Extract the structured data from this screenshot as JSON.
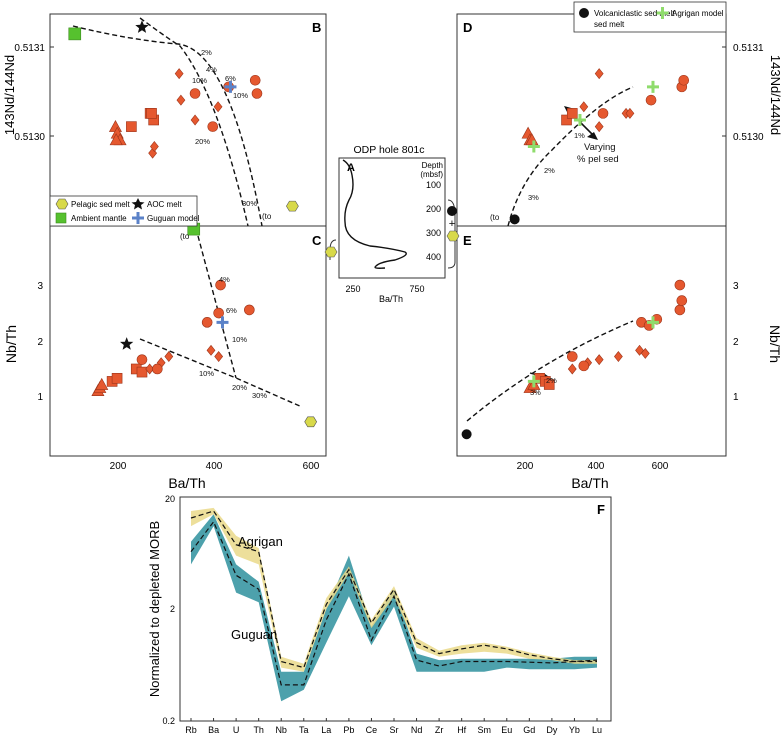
{
  "colors": {
    "data_red": "#e5582f",
    "data_red_edge": "#9b3319",
    "ambient_green": "#56c12e",
    "pel_yellow": "#d8d94a",
    "model_blue": "#5b82c8",
    "agrigan_green": "#8fdc6c",
    "agrigan_band": "#ead98a",
    "guguan_band": "#4da1ac"
  },
  "panels": {
    "B": {
      "letter": "B"
    },
    "C": {
      "letter": "C"
    },
    "D": {
      "letter": "D"
    },
    "E": {
      "letter": "E"
    },
    "F": {
      "letter": "F"
    }
  },
  "axes": {
    "nd_ticks": [
      "0.5131",
      "0.5130"
    ],
    "nbth_ticks": [
      "1",
      "2",
      "3"
    ],
    "bath_ticks": [
      "200",
      "400",
      "600"
    ],
    "nd_label_left": "143Nd/144Nd",
    "nd_label_right": "143Nd/144Nd",
    "nbth_label": "Nb/Th",
    "bath_label": "Ba/Th"
  },
  "legend_B": {
    "pelagic": "Pelagic sed melt",
    "aoc": "AOC melt",
    "ambient": "Ambient mantle",
    "guguan": "Guguan model"
  },
  "legend_D": {
    "volc": "Volcaniclastic sed melt",
    "volc2": "sed melt",
    "agrigan": "Agrigan model"
  },
  "annotations": {
    "pct_B": [
      "2%",
      "4%",
      "6%",
      "10%",
      "10%",
      "20%",
      "30%"
    ],
    "to_label": "(to",
    "pct_C": [
      "4%",
      "6%",
      "10%",
      "10%",
      "20%",
      "30%"
    ],
    "pct_D": [
      "1%",
      "2%",
      "3%"
    ],
    "varying_line1": "Varying",
    "varying_line2": "% pel sed",
    "pct_E": [
      "2%",
      "3%"
    ]
  },
  "inset_A": {
    "title": "ODP hole 801c",
    "letter": "A",
    "depth_label": "Depth",
    "depth_unit": "(mbsf)",
    "depth_ticks": [
      "100",
      "200",
      "300",
      "400"
    ],
    "x_ticks": [
      "250",
      "750"
    ],
    "xlabel": "Ba/Th"
  },
  "chart_data": [
    {
      "panel": "B",
      "type": "scatter",
      "xlabel": "Ba/Th",
      "ylabel": "143Nd/144Nd",
      "xlim": [
        0,
        780
      ],
      "ylim": [
        0.51285,
        0.51317
      ],
      "series": [
        {
          "name": "Guguan samples (triangles)",
          "points": [
            [
              185,
              0.513
            ],
            [
              190,
              0.51299
            ],
            [
              198,
              0.51298
            ],
            [
              187,
              0.51298
            ]
          ]
        },
        {
          "name": "Guguan samples (squares)",
          "points": [
            [
              230,
              0.513
            ],
            [
              283,
              0.51302
            ],
            [
              293,
              0.51301
            ],
            [
              287,
              0.51302
            ]
          ]
        },
        {
          "name": "Guguan samples (diamonds)",
          "points": [
            [
              365,
              0.51308
            ],
            [
              370,
              0.51304
            ],
            [
              410,
              0.51301
            ],
            [
              475,
              0.51303
            ],
            [
              290,
              0.51296
            ],
            [
              295,
              0.51297
            ]
          ]
        },
        {
          "name": "Guguan samples (circles)",
          "points": [
            [
              410,
              0.51305
            ],
            [
              460,
              0.513
            ],
            [
              505,
              0.51306
            ],
            [
              580,
              0.51307
            ],
            [
              585,
              0.51305
            ]
          ]
        },
        {
          "name": "Guguan model",
          "points": [
            [
              510,
              0.51306
            ]
          ]
        },
        {
          "name": "Ambient mantle",
          "points": [
            [
              70,
              0.51314
            ]
          ]
        },
        {
          "name": "AOC melt",
          "points": [
            [
              260,
              0.51315
            ]
          ]
        },
        {
          "name": "Pelagic sed melt",
          "points": [
            [
              685,
              0.51288
            ]
          ]
        }
      ]
    },
    {
      "panel": "C",
      "type": "scatter",
      "xlabel": "Ba/Th",
      "ylabel": "Nb/Th",
      "xlim": [
        60,
        780
      ],
      "ylim": [
        0.2,
        3.9
      ],
      "series": [
        {
          "name": "Guguan samples (triangles)",
          "points": [
            [
              185,
              1.25
            ],
            [
              190,
              1.3
            ],
            [
              195,
              1.35
            ]
          ]
        },
        {
          "name": "Guguan samples (squares)",
          "points": [
            [
              222,
              1.4
            ],
            [
              235,
              1.45
            ],
            [
              285,
              1.6
            ],
            [
              300,
              1.55
            ]
          ]
        },
        {
          "name": "Guguan samples (diamonds)",
          "points": [
            [
              320,
              1.6
            ],
            [
              350,
              1.7
            ],
            [
              370,
              1.8
            ],
            [
              480,
              1.9
            ],
            [
              500,
              1.8
            ]
          ]
        },
        {
          "name": "Guguan samples (circles)",
          "points": [
            [
              300,
              1.75
            ],
            [
              340,
              1.6
            ],
            [
              470,
              2.35
            ],
            [
              500,
              2.5
            ],
            [
              580,
              2.55
            ],
            [
              505,
              2.95
            ]
          ]
        },
        {
          "name": "Guguan model",
          "points": [
            [
              510,
              2.35
            ]
          ]
        },
        {
          "name": "Ambient mantle",
          "points": [
            [
              435,
              3.85
            ]
          ]
        },
        {
          "name": "AOC melt",
          "points": [
            [
              260,
              2.0
            ]
          ]
        },
        {
          "name": "Pelagic sed melt",
          "points": [
            [
              740,
              0.75
            ]
          ]
        }
      ]
    },
    {
      "panel": "D",
      "type": "scatter",
      "xlabel": "Ba/Th",
      "ylabel": "143Nd/144Nd",
      "xlim": [
        0,
        700
      ],
      "ylim": [
        0.51285,
        0.51317
      ],
      "series": [
        {
          "name": "Agrigan samples (triangles)",
          "points": [
            [
              185,
              0.51299
            ],
            [
              190,
              0.51298
            ],
            [
              195,
              0.51298
            ]
          ]
        },
        {
          "name": "Agrigan samples (squares)",
          "points": [
            [
              285,
              0.51301
            ],
            [
              300,
              0.51302
            ]
          ]
        },
        {
          "name": "Agrigan samples (diamonds)",
          "points": [
            [
              330,
              0.51303
            ],
            [
              370,
              0.513
            ],
            [
              440,
              0.51302
            ],
            [
              450,
              0.51302
            ],
            [
              505,
              0.51304
            ],
            [
              370,
              0.51308
            ]
          ]
        },
        {
          "name": "Agrigan samples (circles)",
          "points": [
            [
              380,
              0.51302
            ],
            [
              505,
              0.51304
            ],
            [
              585,
              0.51306
            ],
            [
              590,
              0.51307
            ]
          ]
        },
        {
          "name": "Agrigan model",
          "points": [
            [
              200,
              0.51297
            ],
            [
              320,
              0.51301
            ],
            [
              510,
              0.51306
            ]
          ]
        },
        {
          "name": "Volcaniclastic sed melt",
          "points": [
            [
              150,
              0.51286
            ]
          ]
        }
      ]
    },
    {
      "panel": "E",
      "type": "scatter",
      "xlabel": "Ba/Th",
      "ylabel": "Nb/Th",
      "xlim": [
        0,
        700
      ],
      "ylim": [
        0.2,
        3.9
      ],
      "series": [
        {
          "name": "Agrigan samples (triangles)",
          "points": [
            [
              190,
              1.3
            ],
            [
              200,
              1.35
            ]
          ]
        },
        {
          "name": "Agrigan samples (squares)",
          "points": [
            [
              215,
              1.45
            ],
            [
              230,
              1.4
            ],
            [
              240,
              1.35
            ]
          ]
        },
        {
          "name": "Agrigan samples (diamonds)",
          "points": [
            [
              300,
              1.6
            ],
            [
              340,
              1.7
            ],
            [
              370,
              1.75
            ],
            [
              420,
              1.8
            ],
            [
              475,
              1.9
            ],
            [
              490,
              1.85
            ]
          ]
        },
        {
          "name": "Agrigan samples (circles)",
          "points": [
            [
              300,
              1.8
            ],
            [
              330,
              1.65
            ],
            [
              480,
              2.35
            ],
            [
              500,
              2.3
            ],
            [
              520,
              2.4
            ],
            [
              580,
              2.55
            ],
            [
              580,
              2.95
            ],
            [
              585,
              2.7
            ]
          ]
        },
        {
          "name": "Agrigan model",
          "points": [
            [
              200,
              1.4
            ],
            [
              510,
              2.35
            ]
          ]
        },
        {
          "name": "Volcaniclastic sed melt",
          "points": [
            [
              25,
              0.55
            ]
          ]
        }
      ]
    },
    {
      "panel": "F",
      "type": "line",
      "title": "",
      "ylabel": "Normalized to depleted MORB",
      "yscale": "log",
      "ylim": [
        0.2,
        20
      ],
      "y_ticks": [
        "20",
        "2",
        "0.2"
      ],
      "categories": [
        "Rb",
        "Ba",
        "U",
        "Th",
        "Nb",
        "Ta",
        "La",
        "Pb",
        "Ce",
        "Sr",
        "Nd",
        "Zr",
        "Hf",
        "Sm",
        "Eu",
        "Gd",
        "Dy",
        "Yb",
        "Lu"
      ],
      "series": [
        {
          "name": "Agrigan",
          "band_low": [
            11,
            14,
            6,
            5,
            0.6,
            0.55,
            2.0,
            4.2,
            1.35,
            2.6,
            0.9,
            0.75,
            0.8,
            0.83,
            0.8,
            0.72,
            0.7,
            0.65,
            0.65
          ],
          "band_high": [
            15,
            16,
            9,
            7,
            0.75,
            0.65,
            2.5,
            4.8,
            1.6,
            3.2,
            1.1,
            0.85,
            0.95,
            1.0,
            0.92,
            0.82,
            0.75,
            0.7,
            0.7
          ],
          "model": [
            13,
            15,
            7.5,
            6.5,
            0.68,
            0.6,
            2.2,
            4.5,
            1.5,
            3.0,
            1.0,
            0.8,
            0.88,
            0.95,
            0.88,
            0.78,
            0.72,
            0.68,
            0.68
          ]
        },
        {
          "name": "Guguan",
          "band_low": [
            5,
            11,
            2.8,
            2.3,
            0.3,
            0.38,
            1.0,
            2.6,
            0.95,
            2.1,
            0.55,
            0.55,
            0.55,
            0.55,
            0.6,
            0.58,
            0.58,
            0.58,
            0.6
          ],
          "band_high": [
            8,
            14,
            5,
            3.5,
            0.55,
            0.55,
            2.0,
            6.0,
            1.4,
            3.0,
            0.8,
            0.7,
            0.72,
            0.72,
            0.72,
            0.72,
            0.72,
            0.75,
            0.75
          ],
          "model": [
            6.5,
            12,
            4.0,
            3.0,
            0.42,
            0.42,
            1.6,
            4.1,
            1.05,
            2.6,
            0.7,
            0.62,
            0.68,
            0.68,
            0.68,
            0.67,
            0.66,
            0.68,
            0.7
          ]
        }
      ],
      "labels": [
        "Agrigan",
        "Guguan"
      ]
    }
  ]
}
